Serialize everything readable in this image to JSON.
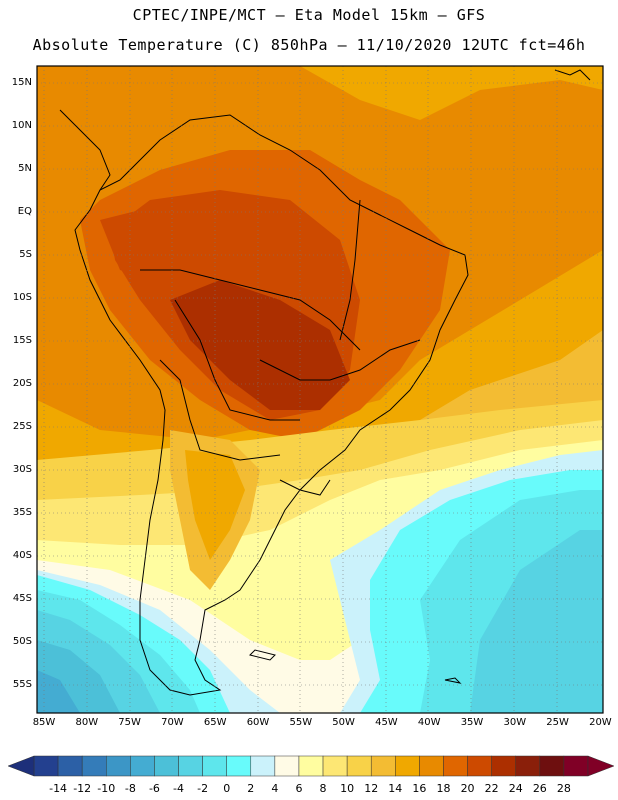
{
  "header": {
    "line1": "CPTEC/INPE/MCT –  Eta Model 15km – GFS",
    "line2": "Absolute Temperature (C) 850hPa – 11/10/2020 12UTC fct=46h"
  },
  "axes": {
    "lat_labels": [
      "15N",
      "10N",
      "5N",
      "EQ",
      "5S",
      "10S",
      "15S",
      "20S",
      "25S",
      "30S",
      "35S",
      "40S",
      "45S",
      "50S",
      "55S"
    ],
    "lon_labels": [
      "85W",
      "80W",
      "75W",
      "70W",
      "65W",
      "60W",
      "55W",
      "50W",
      "45W",
      "40W",
      "35W",
      "30W",
      "25W",
      "20W"
    ]
  },
  "colorbar": {
    "labels": [
      "-14",
      "-12",
      "-10",
      "-8",
      "-6",
      "-4",
      "-2",
      "0",
      "2",
      "4",
      "6",
      "8",
      "10",
      "12",
      "14",
      "16",
      "18",
      "20",
      "22",
      "24",
      "26",
      "28"
    ],
    "colors": [
      "#23408f",
      "#2c60a6",
      "#347cb9",
      "#3c96c6",
      "#44acd2",
      "#4cc0d8",
      "#57d3e3",
      "#5ee6ec",
      "#68fbfb",
      "#cbf2fb",
      "#fffbe6",
      "#fffda0",
      "#fde774",
      "#f8d248",
      "#f3bc33",
      "#f0a800",
      "#e88a00",
      "#e06600",
      "#cd4a00",
      "#ac2f00",
      "#8a1f0a",
      "#6e0f0f",
      "#800026"
    ],
    "low_color": "#1d2f7a",
    "high_color": "#800026"
  }
}
